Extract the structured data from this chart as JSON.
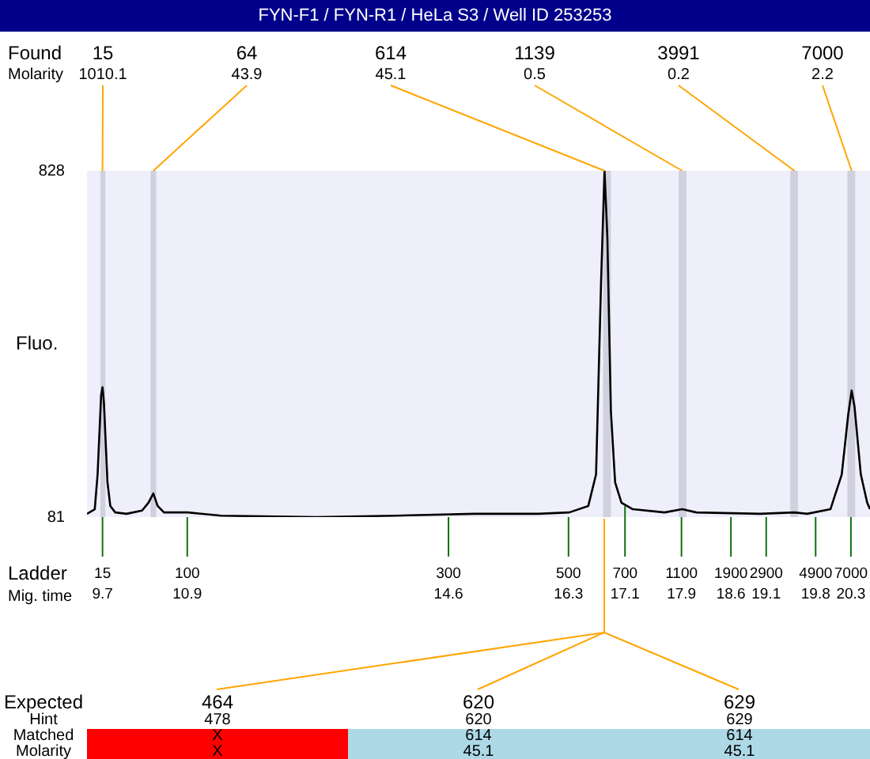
{
  "chart_data": [
    {
      "type": "line",
      "title": "FYN-F1 / FYN-R1 / HeLa S3 / Well ID 253253",
      "ylabel": "Fluo.",
      "x": [
        9.48,
        9.59,
        9.63,
        9.68,
        9.7,
        9.72,
        9.77,
        9.81,
        9.88,
        10.04,
        10.26,
        10.35,
        10.42,
        10.48,
        10.57,
        10.91,
        11.38,
        12.73,
        13.85,
        14.97,
        15.87,
        16.31,
        16.58,
        16.69,
        16.76,
        16.81,
        16.85,
        16.9,
        16.96,
        17.05,
        17.21,
        17.66,
        17.91,
        18.11,
        19.01,
        19.5,
        19.68,
        20.01,
        20.17,
        20.26,
        20.31,
        20.35,
        20.44,
        20.53,
        20.57
      ],
      "series": [
        {
          "color": "#000000",
          "values": [
            88,
            98,
            173,
            344,
            361,
            327,
            156,
            105,
            91,
            88,
            95,
            112,
            132,
            105,
            91,
            91,
            84,
            81,
            84,
            88,
            88,
            91,
            105,
            173,
            582,
            828,
            685,
            310,
            156,
            112,
            98,
            91,
            98,
            91,
            88,
            91,
            88,
            98,
            173,
            300,
            354,
            320,
            173,
            112,
            98
          ]
        }
      ],
      "xlim": [
        9.48,
        20.57
      ],
      "xticks": [
        9.7,
        10.9,
        14.6,
        16.3,
        17.1,
        17.9,
        18.6,
        19.1,
        19.8,
        20.3
      ],
      "ylim": [
        81,
        828
      ],
      "yticks": [
        81,
        828
      ],
      "bands": [
        {
          "axis": "x",
          "from": 9.67,
          "to": 9.74,
          "color": "#d0d0de"
        },
        {
          "axis": "x",
          "from": 10.38,
          "to": 10.46,
          "color": "#d0d0de"
        },
        {
          "axis": "x",
          "from": 16.79,
          "to": 16.9,
          "color": "#d0d0de"
        },
        {
          "axis": "x",
          "from": 17.86,
          "to": 17.97,
          "color": "#d0d0de"
        },
        {
          "axis": "x",
          "from": 19.44,
          "to": 19.55,
          "color": "#d0d0de"
        },
        {
          "axis": "x",
          "from": 20.25,
          "to": 20.36,
          "color": "#d0d0de"
        }
      ],
      "annotations": [
        "Found",
        "Molarity",
        "Ladder",
        "Mig. time",
        {
          "text": "15\n1010.1",
          "x": 9.7,
          "y": 828
        },
        {
          "text": "64\n43.9",
          "x": 10.42,
          "y": 828
        },
        {
          "text": "614\n45.1",
          "x": 16.81,
          "y": 828
        },
        {
          "text": "1139\n0.5",
          "x": 17.91,
          "y": 828
        },
        {
          "text": "3991\n0.2",
          "x": 19.5,
          "y": 828
        },
        {
          "text": "7000\n2.2",
          "x": 20.31,
          "y": 828
        },
        {
          "text": "15",
          "x": 9.7,
          "y": 81
        },
        {
          "text": "100",
          "x": 10.9,
          "y": 81
        },
        {
          "text": "300",
          "x": 14.6,
          "y": 81
        },
        {
          "text": "500",
          "x": 16.3,
          "y": 81
        },
        {
          "text": "700",
          "x": 17.1,
          "y": 105
        },
        {
          "text": "1100",
          "x": 17.9,
          "y": 81
        },
        {
          "text": "1900",
          "x": 18.6,
          "y": 81
        },
        {
          "text": "2900",
          "x": 19.1,
          "y": 81
        },
        {
          "text": "4900",
          "x": 19.8,
          "y": 81
        },
        {
          "text": "7000",
          "x": 20.3,
          "y": 81
        }
      ]
    },
    {
      "type": "other",
      "title": "Expected",
      "categories": [
        "464",
        "620",
        "629"
      ],
      "y_categories": [
        "Hint",
        "Matched",
        "Molarity"
      ],
      "cell_labels": [
        [
          "478",
          "620",
          "629"
        ],
        [
          "X",
          "614",
          "614"
        ],
        [
          "X",
          "45.1",
          "45.1"
        ]
      ],
      "colors": [
        "#ff0000",
        "#add8e6",
        "#add8e6"
      ]
    }
  ]
}
